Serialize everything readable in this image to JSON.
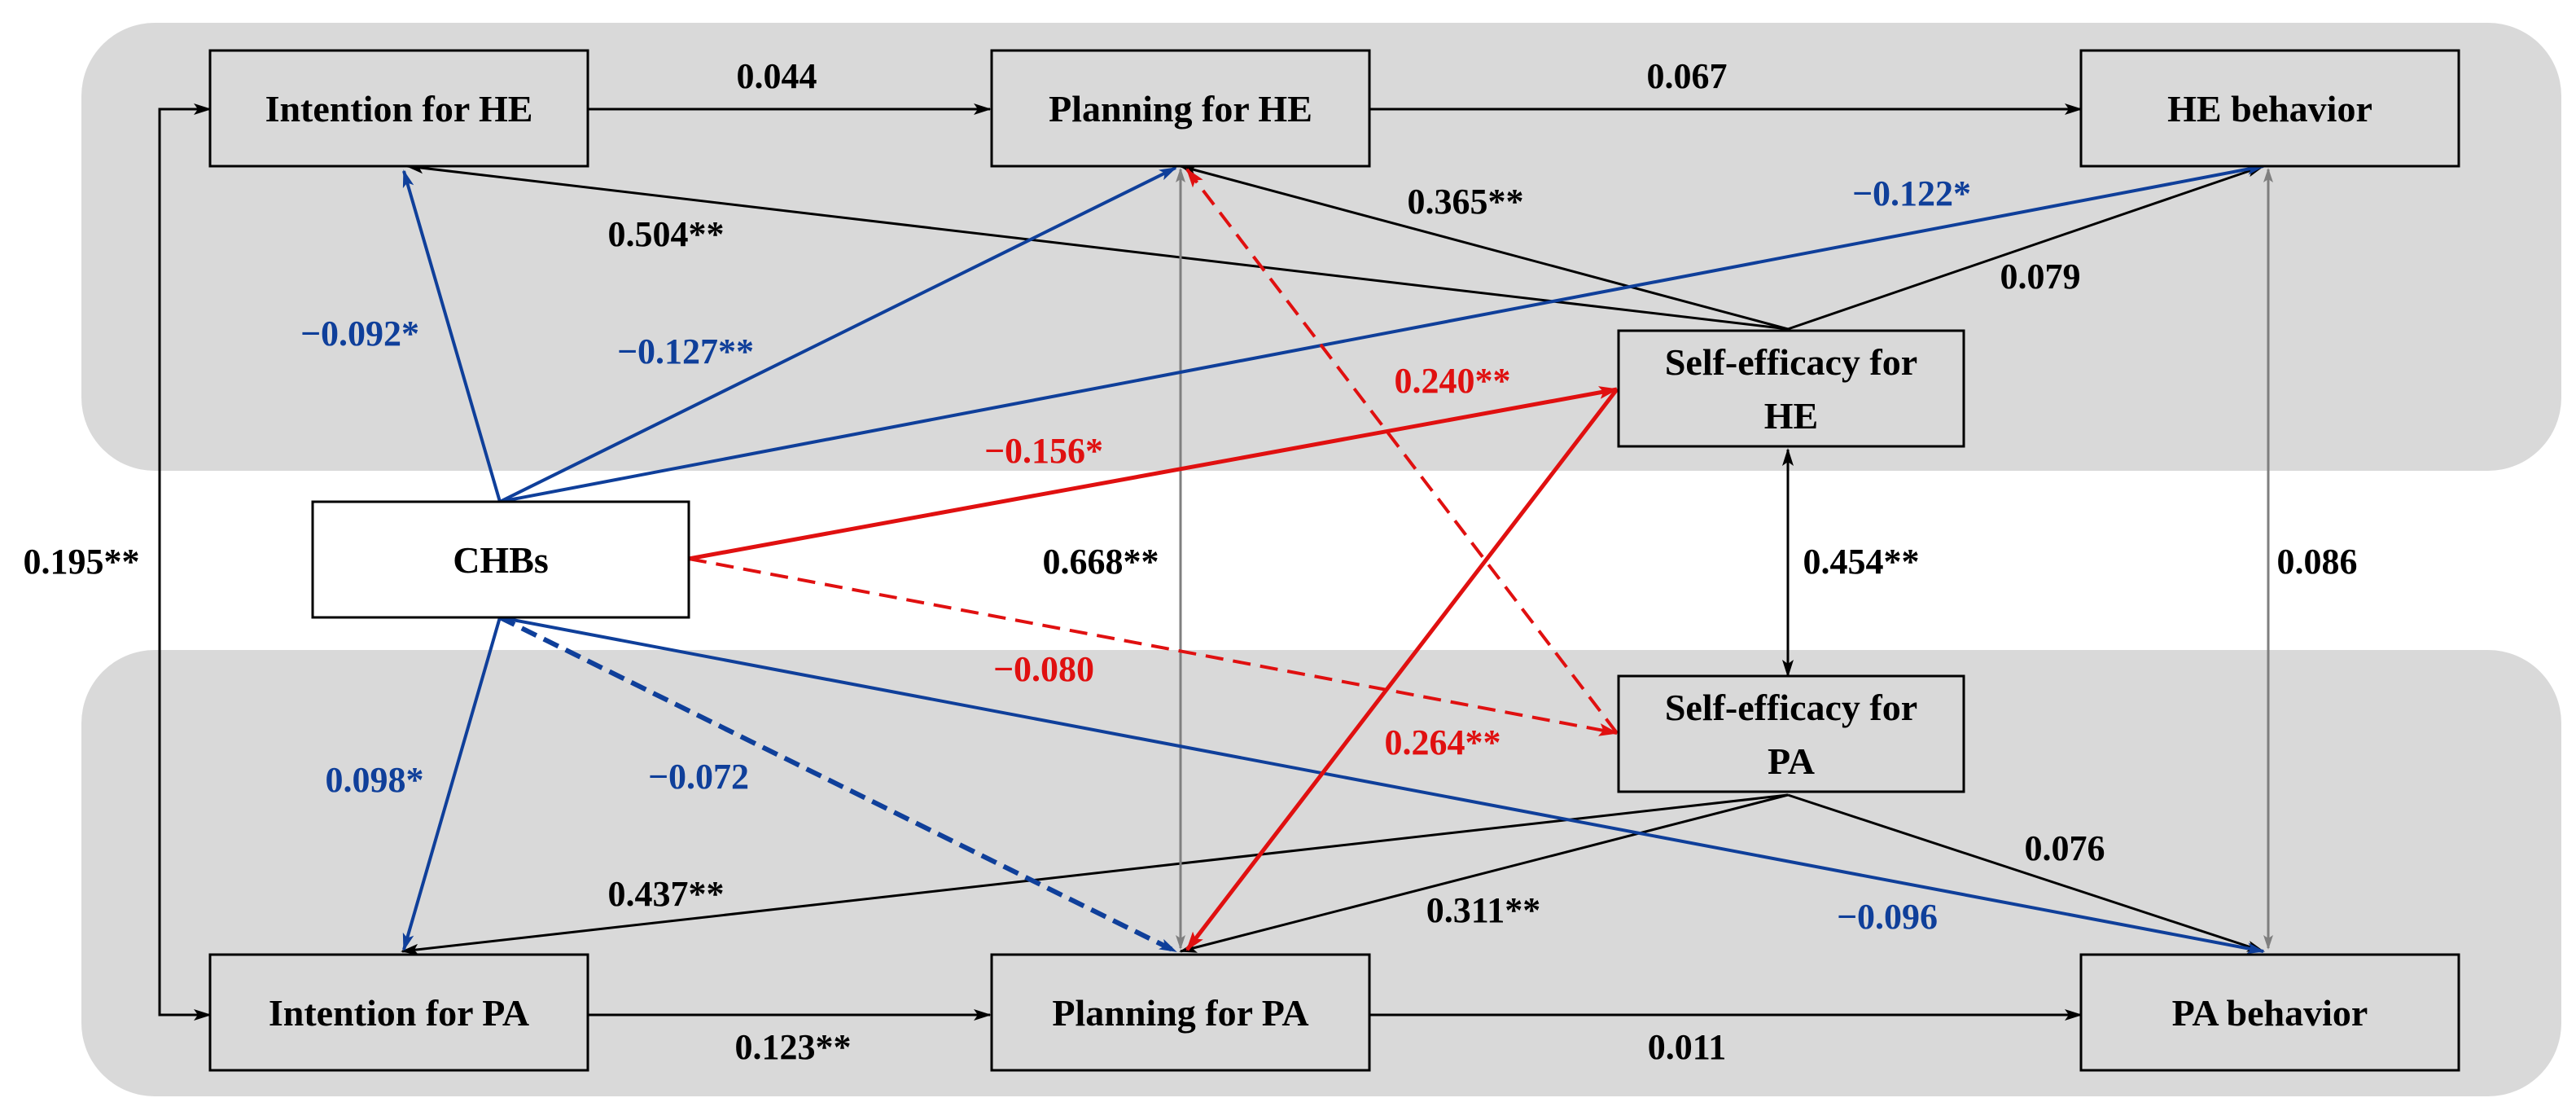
{
  "colors": {
    "band": "#d9d9d9",
    "black": "#000000",
    "blue": "#0f3f9a",
    "red": "#e01010",
    "gray": "#7f7f7f"
  },
  "nodes": {
    "intention_he": "Intention for HE",
    "planning_he": "Planning for HE",
    "he_behavior": "HE behavior",
    "self_efficacy_he_line1": "Self-efficacy for",
    "self_efficacy_he_line2": "HE",
    "chbs": "CHBs",
    "self_efficacy_pa_line1": "Self-efficacy for",
    "self_efficacy_pa_line2": "PA",
    "intention_pa": "Intention for PA",
    "planning_pa": "Planning for PA",
    "pa_behavior": "PA behavior"
  },
  "paths": {
    "intention_he_to_planning_he": "0.044",
    "planning_he_to_he_behavior": "0.067",
    "selfeff_he_to_planning_he": "0.365**",
    "selfeff_he_to_intention_he": "0.504**",
    "chbs_to_he_behavior": "−0.122*",
    "selfeff_he_to_he_behavior": "0.079",
    "chbs_to_intention_he": "−0.092*",
    "chbs_to_planning_he": "−0.127**",
    "selfeff_pa_to_planning_he": "0.240**",
    "chbs_to_selfeff_he": "−0.156*",
    "intention_he_intention_pa": "0.195**",
    "planning_he_planning_pa": "0.668**",
    "selfeff_he_selfeff_pa": "0.454**",
    "he_behavior_pa_behavior": "0.086",
    "chbs_to_selfeff_pa": "−0.080",
    "selfeff_he_to_planning_pa": "0.264**",
    "chbs_to_intention_pa": "0.098*",
    "chbs_to_planning_pa": "−0.072",
    "selfeff_pa_to_pa_behavior": "0.076",
    "selfeff_pa_to_intention_pa": "0.437**",
    "selfeff_pa_to_planning_pa": "0.311**",
    "chbs_to_pa_behavior": "−0.096",
    "intention_pa_to_planning_pa": "0.123**",
    "planning_pa_to_pa_behavior": "0.011"
  }
}
